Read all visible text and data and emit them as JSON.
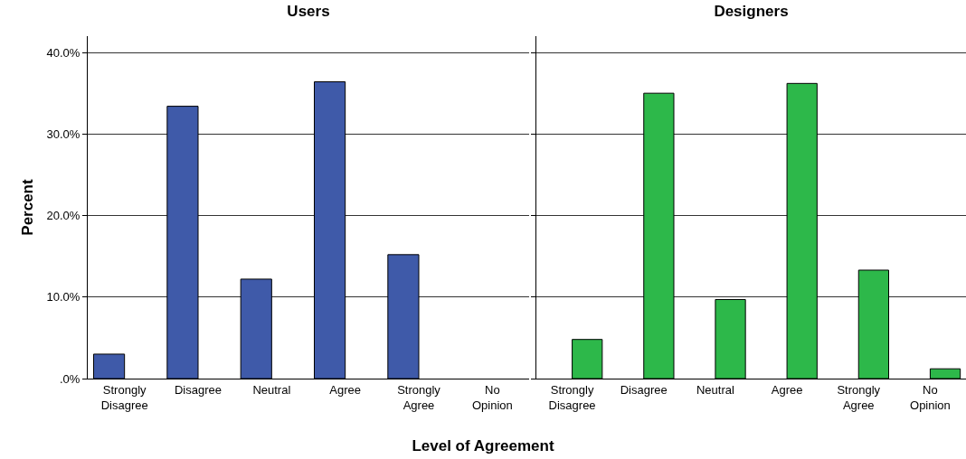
{
  "chart_data": [
    {
      "type": "bar",
      "title": "Users",
      "ylabel": "Percent",
      "xlabel": "Level of Agreement",
      "categories": [
        "Strongly Disagree",
        "Disagree",
        "Neutral",
        "Agree",
        "Strongly Agree",
        "No Opinion"
      ],
      "values": [
        3.0,
        33.4,
        12.2,
        36.4,
        15.2,
        null
      ],
      "color": "#3f5aa9",
      "ylim": [
        0,
        42
      ],
      "yticks": [
        {
          "value": 0,
          "label": ".0%"
        },
        {
          "value": 10,
          "label": "10.0%"
        },
        {
          "value": 20,
          "label": "20.0%"
        },
        {
          "value": 30,
          "label": "30.0%"
        },
        {
          "value": 40,
          "label": "40.0%"
        }
      ],
      "grid": "y"
    },
    {
      "type": "bar",
      "title": "Designers",
      "categories": [
        "Strongly Disagree",
        "Disagree",
        "Neutral",
        "Agree",
        "Strongly Agree",
        "No Opinion"
      ],
      "values": [
        4.8,
        35.0,
        9.7,
        36.2,
        13.3,
        1.2
      ],
      "color": "#2db84a",
      "ylim": [
        0,
        42
      ],
      "yticks": [
        {
          "value": 0,
          "label": null
        },
        {
          "value": 10,
          "label": null
        },
        {
          "value": 20,
          "label": null
        },
        {
          "value": 30,
          "label": null
        },
        {
          "value": 40,
          "label": null
        }
      ],
      "grid": "y",
      "tick_labels": "x"
    }
  ]
}
